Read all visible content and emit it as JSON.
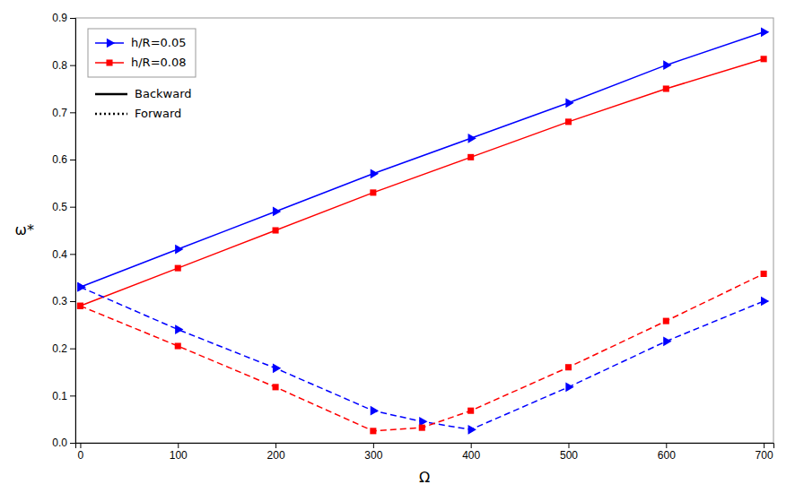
{
  "chart_data": {
    "type": "line",
    "xlabel": "Ω",
    "ylabel": "ω*",
    "xlim": [
      -5,
      710
    ],
    "ylim": [
      0,
      0.9
    ],
    "xticks": [
      0,
      100,
      200,
      300,
      400,
      500,
      600,
      700
    ],
    "yticks": [
      {
        "value": 0.0,
        "label": "0.0"
      },
      0.1,
      0.2,
      0.3,
      0.4,
      0.5,
      0.6,
      0.7,
      0.8,
      0.9
    ],
    "grid": false,
    "legend": "upper left",
    "series": [
      {
        "name": "h/R=0.05",
        "color": "#0000FF",
        "marker": "triangle-right",
        "line_style": "solid",
        "x": [
          0,
          100,
          200,
          300,
          400,
          500,
          600,
          700
        ],
        "values": [
          0.33,
          0.41,
          0.49,
          0.57,
          0.645,
          0.72,
          0.8,
          0.87
        ]
      },
      {
        "name": "h/R=0.08",
        "color": "#FF0000",
        "marker": "square",
        "line_style": "solid",
        "x": [
          0,
          100,
          200,
          300,
          400,
          500,
          600,
          700
        ],
        "values": [
          0.29,
          0.37,
          0.45,
          0.53,
          0.605,
          0.68,
          0.75,
          0.813
        ]
      },
      {
        "name": "h/R=0.05",
        "color": "#0000FF",
        "marker": "triangle-right",
        "line_style": "dashed",
        "x": [
          0,
          100,
          200,
          300,
          350,
          400,
          500,
          600,
          700
        ],
        "values": [
          0.33,
          0.24,
          0.158,
          0.068,
          0.045,
          0.028,
          0.118,
          0.215,
          0.3
        ]
      },
      {
        "name": "h/R=0.08",
        "color": "#FF0000",
        "marker": "square",
        "line_style": "dashed",
        "x": [
          0,
          100,
          200,
          300,
          350,
          400,
          500,
          600,
          700
        ],
        "values": [
          0.29,
          0.205,
          0.118,
          0.025,
          0.032,
          0.068,
          0.16,
          0.258,
          0.358
        ]
      }
    ],
    "legend_styles": [
      {
        "name": "Backward",
        "color": "#000000",
        "line_style": "solid"
      },
      {
        "name": "Forward",
        "color": "#000000",
        "line_style": "dotted"
      }
    ]
  }
}
